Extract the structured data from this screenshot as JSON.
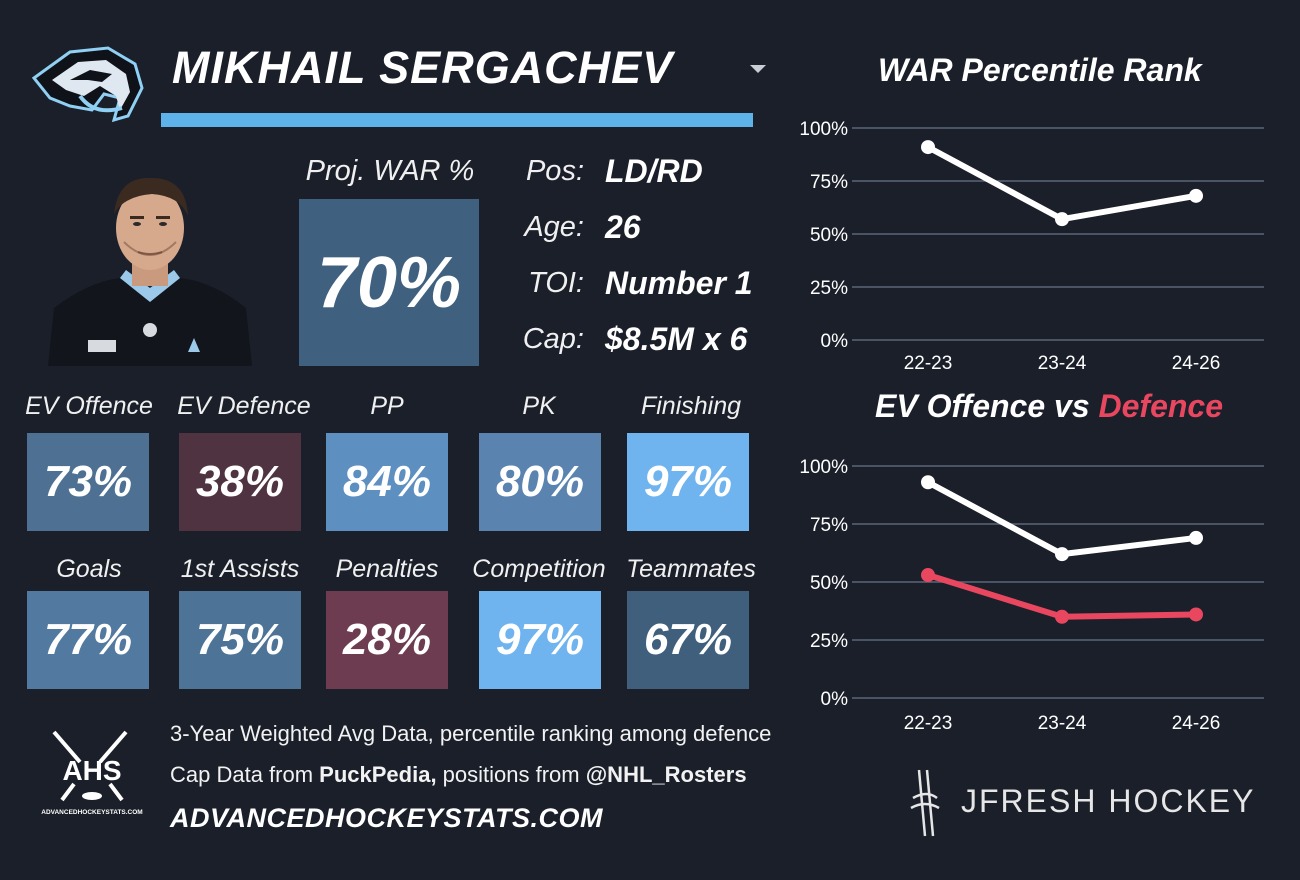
{
  "player": {
    "name": "MIKHAIL SERGACHEV",
    "proj_war_label": "Proj. WAR %",
    "proj_war_value": "70%",
    "info": [
      {
        "key": "Pos:",
        "value": "LD/RD"
      },
      {
        "key": "Age:",
        "value": "26"
      },
      {
        "key": "TOI:",
        "value": "Number 1"
      },
      {
        "key": "Cap:",
        "value": "$8.5M x 6"
      }
    ]
  },
  "tiles_row1": [
    {
      "label": "EV Offence",
      "value": "73%",
      "color": "#4d7093"
    },
    {
      "label": "EV Defence",
      "value": "38%",
      "color": "#503340"
    },
    {
      "label": "PP",
      "value": "84%",
      "color": "#5d8fc0"
    },
    {
      "label": "PK",
      "value": "80%",
      "color": "#5a83b0"
    },
    {
      "label": "Finishing",
      "value": "97%",
      "color": "#6fb4ef"
    }
  ],
  "tiles_row2": [
    {
      "label": "Goals",
      "value": "77%",
      "color": "#5279a0"
    },
    {
      "label": "1st Assists",
      "value": "75%",
      "color": "#4d7497"
    },
    {
      "label": "Penalties",
      "value": "28%",
      "color": "#6e3c50"
    },
    {
      "label": "Competition",
      "value": "97%",
      "color": "#6fb4ef"
    },
    {
      "label": "Teammates",
      "value": "67%",
      "color": "#3f5f7c"
    }
  ],
  "footer": {
    "line1": "3-Year Weighted Avg Data, percentile ranking among defence",
    "line2_prefix": "Cap Data from ",
    "line2_bold1": "PuckPedia,",
    "line2_mid": " positions from ",
    "line2_bold2": "@NHL_Rosters",
    "url": "ADVANCEDHOCKEYSTATS.COM",
    "ahs_logo_text": "AHS",
    "ahs_logo_sub": "ADVANCEDHOCKEYSTATS.COM",
    "brand": "JFRESH HOCKEY"
  },
  "colors": {
    "background": "#1a1f2a",
    "accent_blue": "#5db2ea",
    "war_line": "#ffffff",
    "offence_line": "#ffffff",
    "defence_line": "#e8475f",
    "grid": "#5b6678"
  },
  "chart_data": [
    {
      "type": "line",
      "title": "WAR Percentile Rank",
      "categories": [
        "22-23",
        "23-24",
        "24-26"
      ],
      "series": [
        {
          "values": [
            91,
            57,
            68
          ]
        }
      ],
      "ylim": [
        0,
        100
      ],
      "yticks": [
        "0%",
        "25%",
        "50%",
        "75%",
        "100%"
      ],
      "grid": true
    },
    {
      "type": "line",
      "title_part1": "EV Offence vs ",
      "title_part2": "Defence",
      "categories": [
        "22-23",
        "23-24",
        "24-26"
      ],
      "series": [
        {
          "values": [
            93,
            62,
            69
          ]
        },
        {
          "values": [
            53,
            35,
            36
          ]
        }
      ],
      "ylim": [
        0,
        100
      ],
      "yticks": [
        "0%",
        "25%",
        "50%",
        "75%",
        "100%"
      ],
      "grid": true
    }
  ]
}
